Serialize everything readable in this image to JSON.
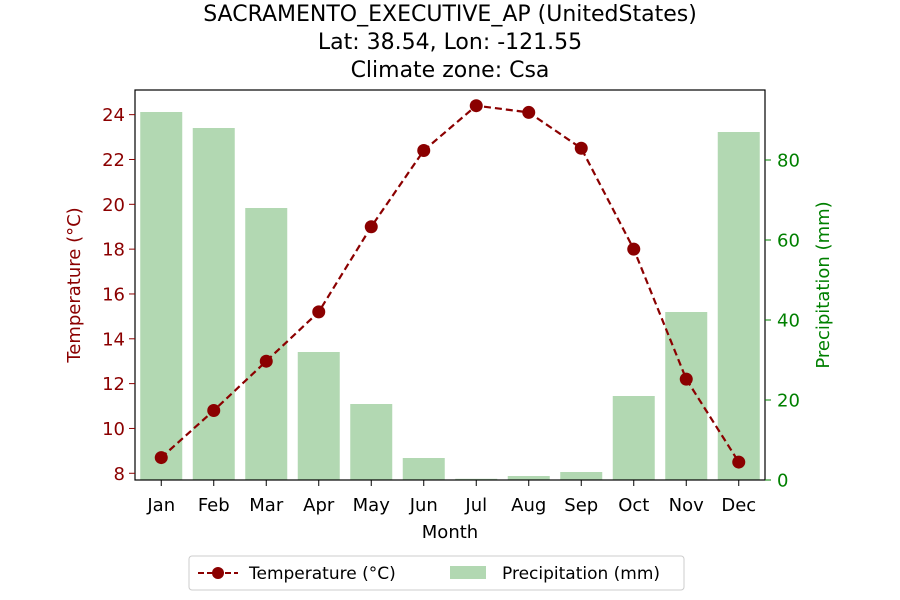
{
  "chart_data": {
    "type": "bar",
    "title_lines": [
      "SACRAMENTO_EXECUTIVE_AP (UnitedStates)",
      "Lat: 38.54, Lon: -121.55",
      "Climate zone: Csa"
    ],
    "xlabel": "Month",
    "ylabel_left": "Temperature (°C)",
    "ylabel_right": "Precipitation (mm)",
    "categories": [
      "Jan",
      "Feb",
      "Mar",
      "Apr",
      "May",
      "Jun",
      "Jul",
      "Aug",
      "Sep",
      "Oct",
      "Nov",
      "Dec"
    ],
    "ylim_left": [
      7.7,
      25.1
    ],
    "yticks_left": [
      8,
      10,
      12,
      14,
      16,
      18,
      20,
      22,
      24
    ],
    "ylim_right": [
      0,
      97.5
    ],
    "yticks_right": [
      0,
      20,
      40,
      60,
      80
    ],
    "series": [
      {
        "name": "Temperature (°C)",
        "type": "line",
        "axis": "left",
        "color": "#8b0000",
        "style": "dashed with circle markers",
        "values": [
          8.7,
          10.8,
          13.0,
          15.2,
          19.0,
          22.4,
          24.4,
          24.1,
          22.5,
          18.0,
          12.2,
          8.5
        ]
      },
      {
        "name": "Precipitation (mm)",
        "type": "bar",
        "axis": "right",
        "color": "#b2d8b2",
        "values": [
          92,
          88,
          68,
          32,
          19,
          5.5,
          0.3,
          1,
          2,
          21,
          42,
          87
        ]
      }
    ],
    "left_axis_color": "#8b0000",
    "right_axis_color": "#008000",
    "legend_position": "bottom-center",
    "grid": false
  }
}
